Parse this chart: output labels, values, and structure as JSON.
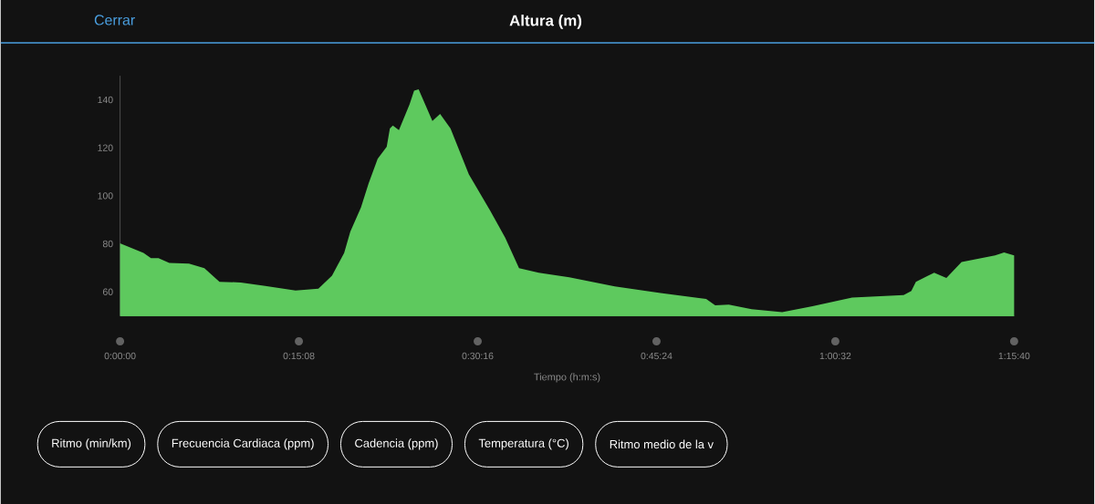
{
  "chart_data": {
    "type": "area",
    "title": "Altura (m)",
    "xlabel": "Tiempo (h:m:s)",
    "x": [
      0,
      119,
      157,
      195,
      250,
      350,
      428,
      505,
      613,
      737,
      891,
      1007,
      1076,
      1138,
      1169,
      1223,
      1262,
      1308,
      1354,
      1370,
      1385,
      1416,
      1470,
      1493,
      1516,
      1586,
      1625,
      1678,
      1771,
      1879,
      1956,
      2026,
      2126,
      2281,
      2512,
      2744,
      2976,
      3022,
      3091,
      3207,
      3362,
      3516,
      3717,
      3979,
      4018,
      4041,
      4134,
      4196,
      4273,
      4443,
      4489,
      4540
    ],
    "values": [
      80.2,
      76.2,
      74.0,
      74.0,
      72.0,
      71.8,
      69.9,
      64.2,
      63.9,
      62.5,
      60.6,
      61.3,
      66.7,
      76.2,
      85.0,
      95.1,
      105.2,
      115.4,
      120.4,
      128.0,
      129.3,
      127.4,
      138.1,
      143.8,
      144.4,
      131.2,
      134.1,
      128.0,
      109.0,
      93.9,
      82.5,
      69.9,
      68.0,
      66.1,
      62.3,
      59.5,
      57.0,
      54.4,
      54.7,
      52.8,
      51.5,
      54.0,
      57.6,
      58.7,
      60.4,
      64.2,
      68.0,
      65.8,
      72.4,
      75.2,
      76.4,
      75.2
    ],
    "color": "#5ec95e",
    "xlim": [
      0,
      4540
    ],
    "ylim": [
      50,
      150
    ],
    "xticks": [
      {
        "value": 0,
        "label": "0:00:00"
      },
      {
        "value": 908,
        "label": "0:15:08"
      },
      {
        "value": 1816,
        "label": "0:30:16"
      },
      {
        "value": 2724,
        "label": "0:45:24"
      },
      {
        "value": 3632,
        "label": "1:00:32"
      },
      {
        "value": 4540,
        "label": "1:15:40"
      }
    ],
    "yticks": [
      60,
      80,
      100,
      120,
      140
    ],
    "marker": "none",
    "grid": false,
    "annotations": [
      "Cerrar",
      "Ritmo (min/km)",
      "Frecuencia Cardiaca (ppm)",
      "Cadencia (ppm)",
      "Temperatura (°C)",
      "Ritmo medio de la v"
    ]
  }
}
